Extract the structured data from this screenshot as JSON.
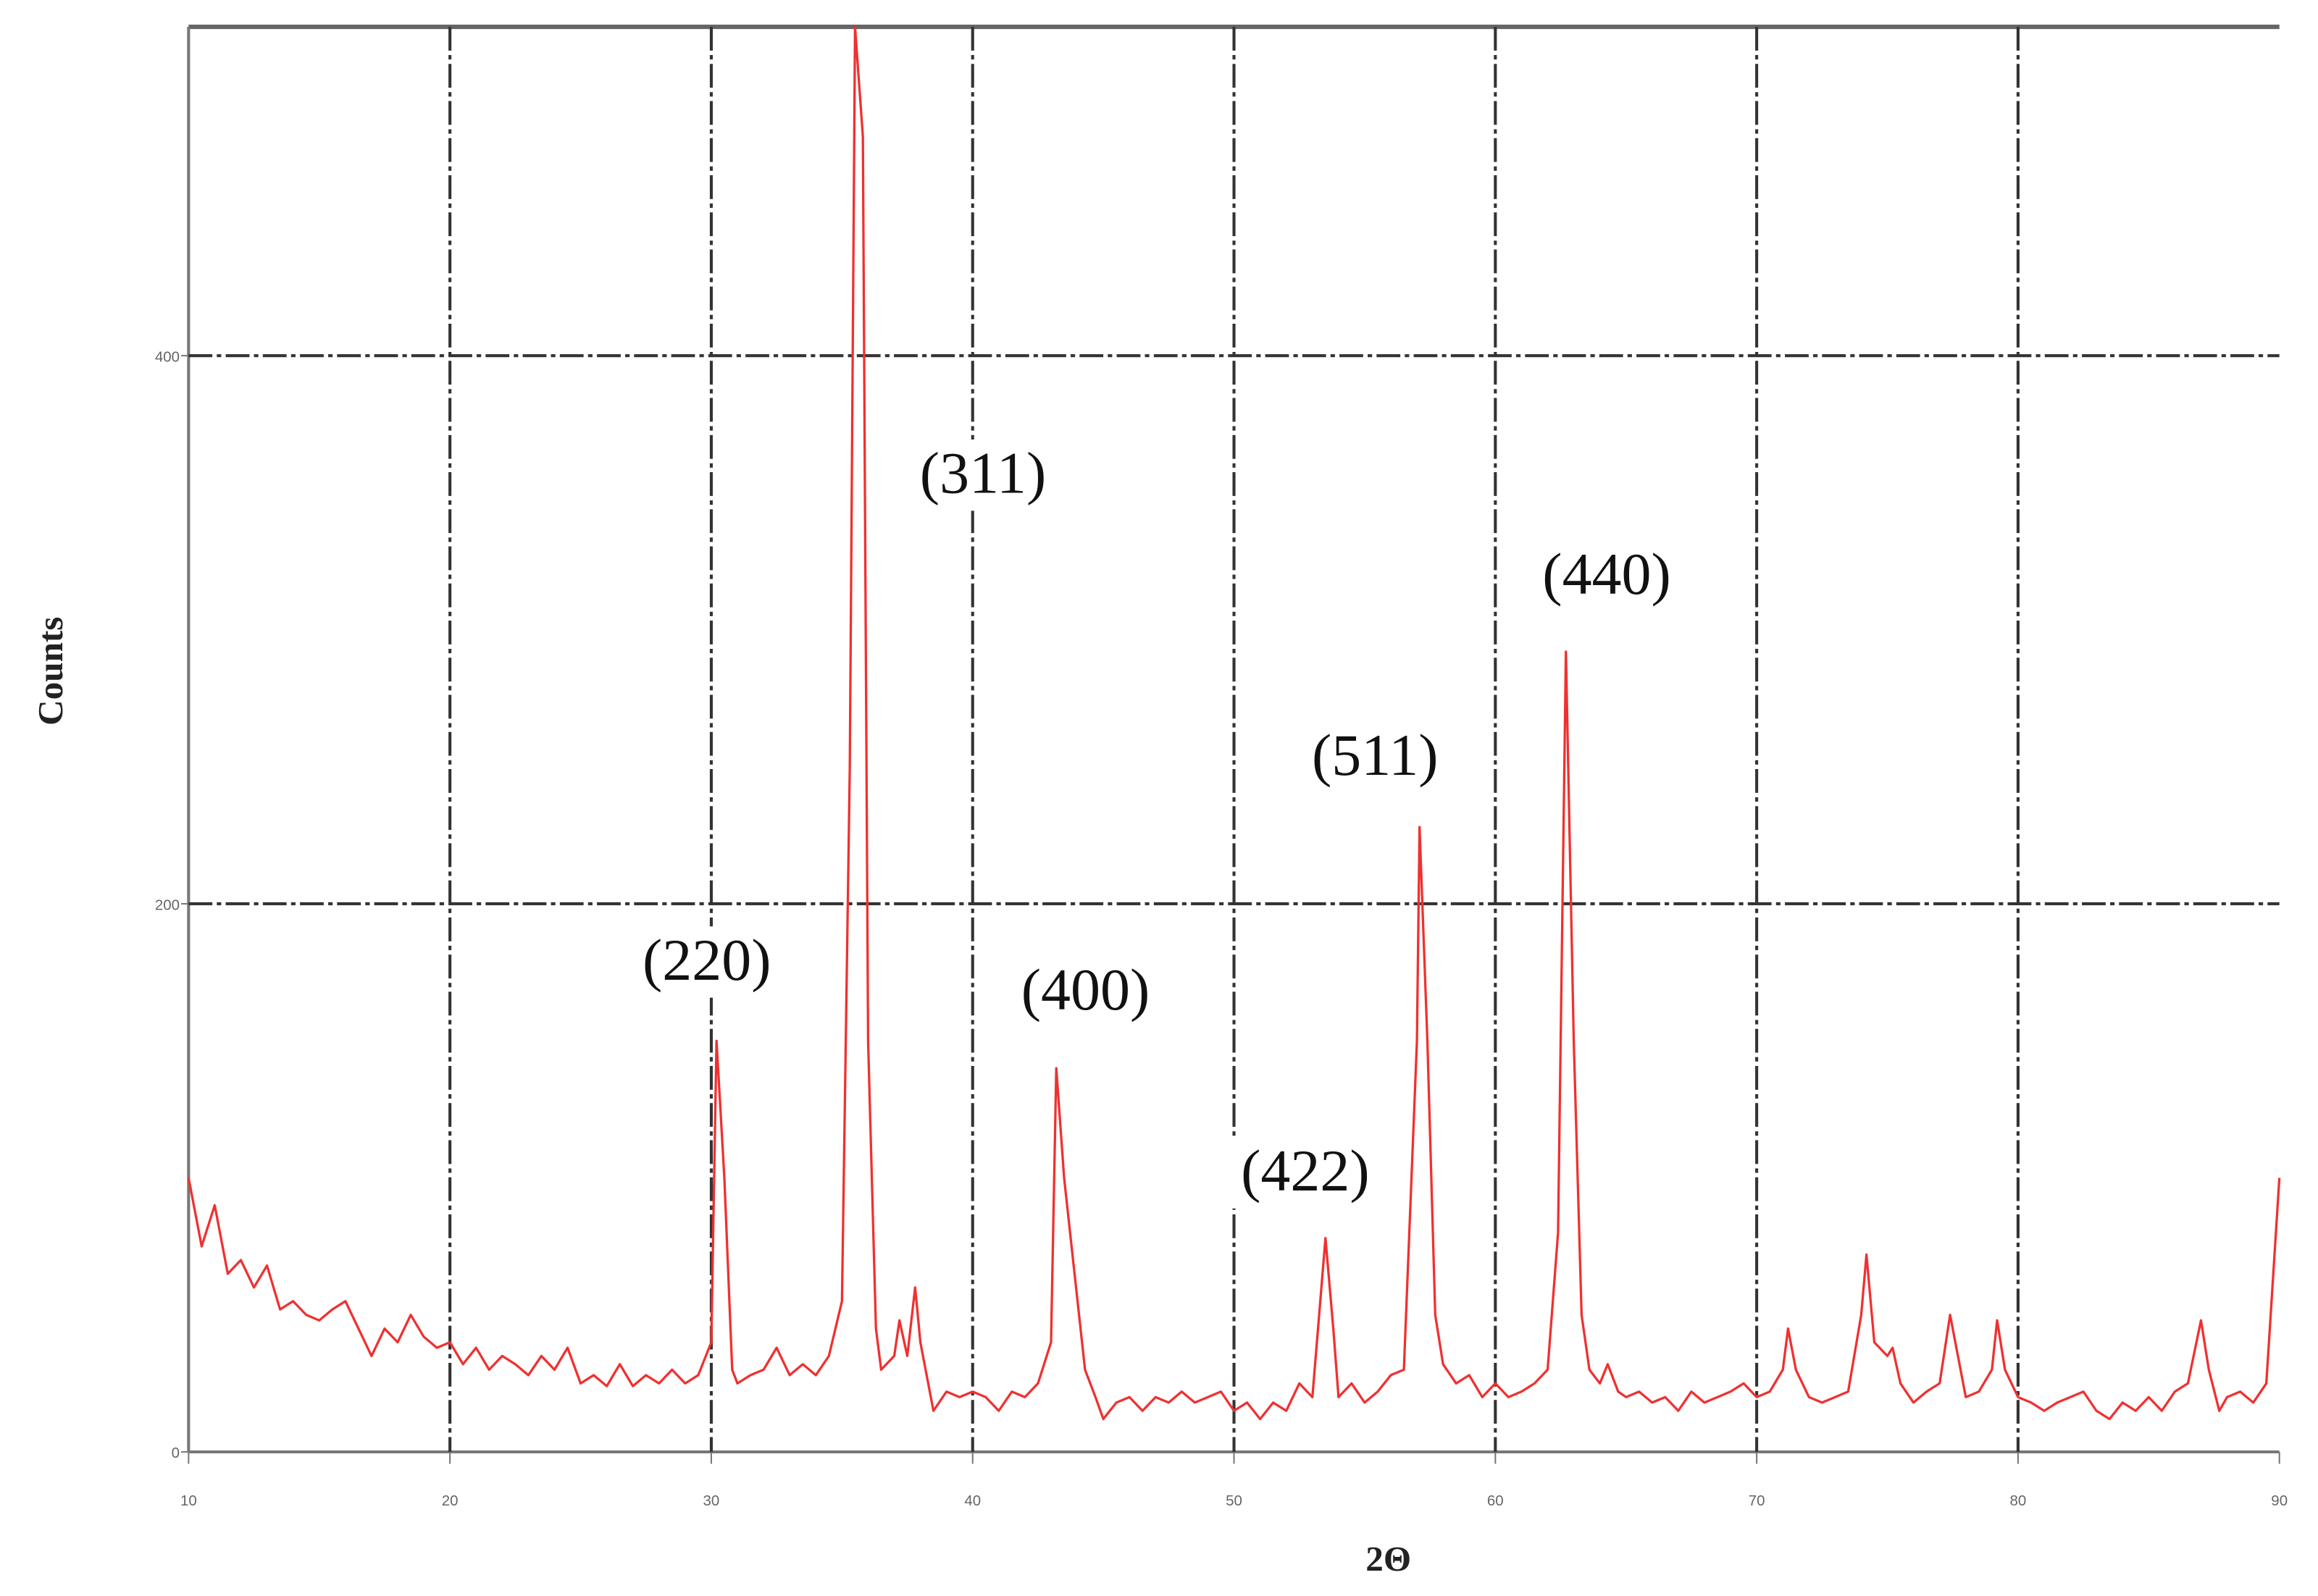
{
  "chart_data": {
    "type": "line",
    "xlabel": "2Θ",
    "ylabel": "Counts",
    "x": [
      10,
      10.5,
      11,
      11.5,
      12,
      12.5,
      13,
      13.5,
      14,
      14.5,
      15,
      15.5,
      16,
      16.5,
      17,
      17.5,
      18,
      18.5,
      19,
      19.5,
      20,
      20.5,
      21,
      21.5,
      22,
      22.5,
      23,
      23.5,
      24,
      24.5,
      25,
      25.5,
      26,
      26.5,
      27,
      27.5,
      28,
      28.5,
      29,
      29.5,
      30,
      30.2,
      30.5,
      30.8,
      31,
      31.5,
      32,
      32.5,
      33,
      33.5,
      34,
      34.5,
      35,
      35.3,
      35.5,
      35.8,
      36,
      36.3,
      36.5,
      37,
      37.2,
      37.5,
      37.8,
      38,
      38.5,
      39,
      39.5,
      40,
      40.5,
      41,
      41.5,
      42,
      42.5,
      43,
      43.2,
      43.5,
      43.9,
      44.3,
      44.7,
      45,
      45.5,
      46,
      46.5,
      47,
      47.5,
      48,
      48.5,
      49,
      49.5,
      50,
      50.5,
      51,
      51.5,
      52,
      52.5,
      53,
      53.5,
      53.8,
      54,
      54.5,
      55,
      55.5,
      56,
      56.5,
      57,
      57.1,
      57.4,
      57.7,
      58,
      58.5,
      59,
      59.5,
      60,
      60.5,
      61,
      61.5,
      62,
      62.4,
      62.7,
      63,
      63.3,
      63.6,
      64,
      64.3,
      64.7,
      65,
      65.5,
      66,
      66.5,
      67,
      67.5,
      68,
      68.5,
      69,
      69.5,
      70,
      70.5,
      71,
      71.2,
      71.5,
      72,
      72.5,
      73,
      73.5,
      74,
      74.2,
      74.5,
      75,
      75.2,
      75.5,
      76,
      76.5,
      77,
      77.4,
      77.7,
      78,
      78.5,
      79,
      79.2,
      79.5,
      80,
      80.5,
      81,
      81.5,
      82,
      82.5,
      83,
      83.5,
      84,
      84.5,
      85,
      85.5,
      86,
      86.5,
      87,
      87.3,
      87.7,
      88,
      88.5,
      89,
      89.5,
      90
    ],
    "values": [
      100,
      75,
      90,
      65,
      70,
      60,
      68,
      52,
      55,
      50,
      48,
      52,
      55,
      45,
      35,
      45,
      40,
      50,
      42,
      38,
      40,
      32,
      38,
      30,
      35,
      32,
      28,
      35,
      30,
      38,
      25,
      28,
      24,
      32,
      24,
      28,
      25,
      30,
      25,
      28,
      40,
      150,
      100,
      30,
      25,
      28,
      30,
      38,
      28,
      32,
      28,
      35,
      55,
      250,
      520,
      480,
      150,
      45,
      30,
      35,
      48,
      35,
      60,
      40,
      15,
      22,
      20,
      22,
      20,
      15,
      22,
      20,
      25,
      40,
      140,
      100,
      65,
      30,
      20,
      12,
      18,
      20,
      15,
      20,
      18,
      22,
      18,
      20,
      22,
      15,
      18,
      12,
      18,
      15,
      25,
      20,
      78,
      45,
      20,
      25,
      18,
      22,
      28,
      30,
      150,
      228,
      150,
      50,
      32,
      25,
      28,
      20,
      25,
      20,
      22,
      25,
      30,
      80,
      292,
      150,
      50,
      30,
      25,
      32,
      22,
      20,
      22,
      18,
      20,
      15,
      22,
      18,
      20,
      22,
      25,
      20,
      22,
      30,
      45,
      30,
      20,
      18,
      20,
      22,
      50,
      72,
      40,
      35,
      38,
      25,
      18,
      22,
      25,
      50,
      35,
      20,
      22,
      30,
      48,
      30,
      20,
      18,
      15,
      18,
      20,
      22,
      15,
      12,
      18,
      15,
      20,
      15,
      22,
      25,
      48,
      30,
      15,
      20,
      22,
      18,
      25,
      100
    ],
    "color": "#f03030",
    "xlim": [
      10,
      90
    ],
    "ylim": [
      0,
      520
    ],
    "xticks": [
      10,
      20,
      30,
      40,
      50,
      60,
      70,
      80,
      90
    ],
    "yticks": [
      0,
      200,
      400
    ],
    "grid": true,
    "annotations": [
      "(220)",
      "(311)",
      "(400)",
      "(422)",
      "(511)",
      "(440)"
    ]
  }
}
